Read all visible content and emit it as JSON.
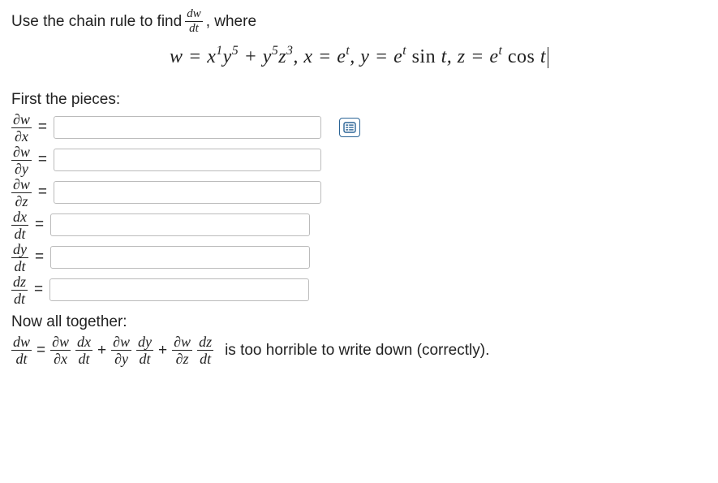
{
  "prompt": {
    "before_frac": "Use the chain rule to find",
    "frac_num": "dw",
    "frac_den": "dt",
    "after_frac": ", where"
  },
  "main_equation": "w = x<sup>1</sup>y<sup>5</sup> + y<sup>5</sup>z<sup>3</sup>, x = e<sup>t</sup>, y = e<sup>t</sup> <span class='rm'>sin</span> t, z = e<sup>t</sup> <span class='rm'>cos</span> t",
  "section_first": "First the pieces:",
  "pieces": [
    {
      "num": "∂w",
      "den": "∂x",
      "show_icon": true
    },
    {
      "num": "∂w",
      "den": "∂y",
      "show_icon": false
    },
    {
      "num": "∂w",
      "den": "∂z",
      "show_icon": false
    },
    {
      "num": "dx",
      "den": "dt",
      "show_icon": false
    },
    {
      "num": "dy",
      "den": "dt",
      "show_icon": false
    },
    {
      "num": "dz",
      "den": "dt",
      "show_icon": false
    }
  ],
  "section_together": "Now all together:",
  "chain": {
    "lhs_num": "dw",
    "lhs_den": "dt",
    "t1a_num": "∂w",
    "t1a_den": "∂x",
    "t1b_num": "dx",
    "t1b_den": "dt",
    "t2a_num": "∂w",
    "t2a_den": "∂y",
    "t2b_num": "dy",
    "t2b_den": "dt",
    "t3a_num": "∂w",
    "t3a_den": "∂z",
    "t3b_num": "dz",
    "t3b_den": "dt"
  },
  "tail_text": "is too horrible to write down (correctly).",
  "colors": {
    "text": "#222222",
    "border": "#bbbbbb",
    "icon": "#2a6496",
    "background": "#ffffff"
  }
}
